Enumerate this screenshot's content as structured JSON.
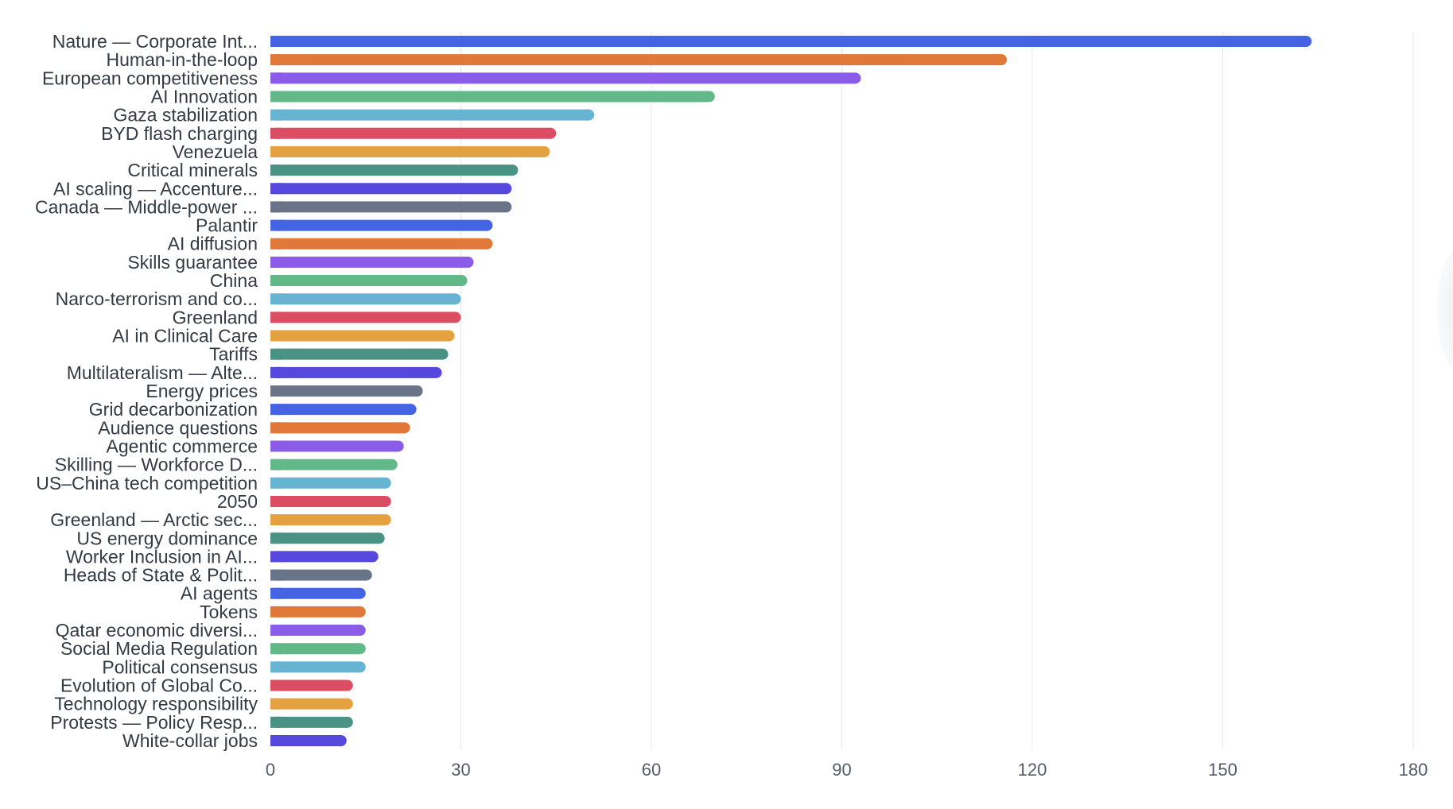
{
  "chart_data": {
    "type": "bar",
    "orientation": "horizontal",
    "title": "",
    "xlabel": "",
    "ylabel": "",
    "xlim": [
      0,
      180
    ],
    "x_ticks": [
      0,
      30,
      60,
      90,
      120,
      150,
      180
    ],
    "grid": true,
    "legend": "none",
    "categories": [
      "Nature — Corporate Int...",
      "Human-in-the-loop",
      "European competitiveness",
      "AI Innovation",
      "Gaza stabilization",
      "BYD flash charging",
      "Venezuela",
      "Critical minerals",
      "AI scaling — Accenture...",
      "Canada — Middle-power ...",
      "Palantir",
      "AI diffusion",
      "Skills guarantee",
      "China",
      "Narco-terrorism and co...",
      "Greenland",
      "AI in Clinical Care",
      "Tariffs",
      "Multilateralism — Alte...",
      "Energy prices",
      "Grid decarbonization",
      "Audience questions",
      "Agentic commerce",
      "Skilling — Workforce D...",
      "US–China tech competition",
      "2050",
      "Greenland — Arctic sec...",
      "US energy dominance",
      "Worker Inclusion in AI...",
      "Heads of State & Polit...",
      "AI agents",
      "Tokens",
      "Qatar economic diversi...",
      "Social Media Regulation",
      "Political consensus",
      "Evolution of Global Co...",
      "Technology responsibility",
      "Protests — Policy Resp...",
      "White-collar jobs"
    ],
    "values": [
      164,
      116,
      93,
      70,
      51,
      45,
      44,
      39,
      38,
      38,
      35,
      35,
      32,
      31,
      30,
      30,
      29,
      28,
      27,
      24,
      23,
      22,
      21,
      20,
      19,
      19,
      19,
      18,
      17,
      16,
      15,
      15,
      15,
      15,
      15,
      13,
      13,
      13,
      12
    ],
    "palette": [
      "#4464e4",
      "#e0783a",
      "#8a5ce8",
      "#62b887",
      "#66b4d2",
      "#da4d62",
      "#e4a13f",
      "#4a9283",
      "#5648dc",
      "#6a7489"
    ]
  }
}
